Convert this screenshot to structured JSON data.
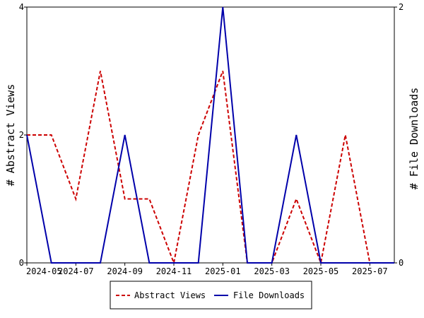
{
  "chart_data": {
    "type": "line",
    "title": "",
    "xlabel": "",
    "x": [
      "2024-05",
      "2024-06",
      "2024-07",
      "2024-08",
      "2024-09",
      "2024-10",
      "2024-11",
      "2024-12",
      "2025-01",
      "2025-02",
      "2025-03",
      "2025-04",
      "2025-05",
      "2025-06",
      "2025-07",
      "2025-08"
    ],
    "x_ticks": [
      "2024-05",
      "2024-07",
      "2024-09",
      "2024-11",
      "2025-01",
      "2025-03",
      "2025-05",
      "2025-07"
    ],
    "y_left": {
      "label": "# Abstract Views",
      "lim": [
        0,
        4
      ],
      "ticks": [
        "0",
        "2",
        "4"
      ]
    },
    "y_right": {
      "label": "# File Downloads",
      "lim": [
        0,
        2
      ],
      "ticks": [
        "0",
        "2"
      ]
    },
    "series": [
      {
        "name": "Abstract Views",
        "axis": "left",
        "color": "#cc0000",
        "style": "dashed",
        "values": [
          2,
          2,
          1,
          3,
          1,
          1,
          0,
          2,
          3,
          0,
          0,
          1,
          0,
          2,
          0,
          0
        ]
      },
      {
        "name": "File Downloads",
        "axis": "right",
        "color": "#0000aa",
        "style": "solid",
        "values": [
          1,
          0,
          0,
          0,
          1,
          0,
          0,
          0,
          2,
          0,
          0,
          1,
          0,
          0,
          0,
          0
        ]
      }
    ],
    "legend": {
      "position": "bottom"
    },
    "grid": false
  }
}
